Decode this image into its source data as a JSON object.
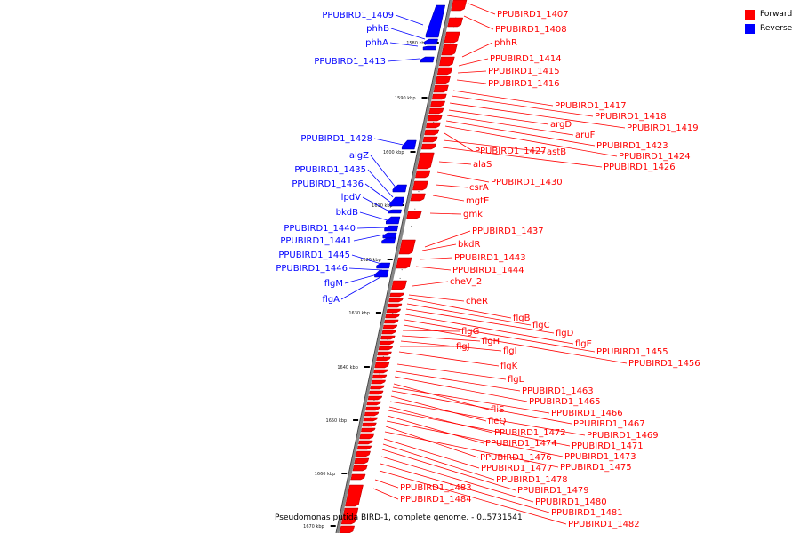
{
  "legend": {
    "forward_label": "Forward",
    "reverse_label": "Reverse",
    "forward_color": "#ff0000",
    "reverse_color": "#0000ff"
  },
  "title": "Pseudomonas putida BIRD-1, complete genome. - 0..5731541",
  "colors": {
    "forward": "#ff0000",
    "forward_edge": "#b00000",
    "reverse": "#0000ff",
    "reverse_edge": "#000099",
    "backbone": "#888888"
  },
  "scale_labels": [
    "1580 kbp",
    "1590 kbp",
    "1600 kbp",
    "1610 kbp",
    "1620 kbp",
    "1630 kbp",
    "1640 kbp",
    "1650 kbp",
    "1660 kbp",
    "1670 kbp"
  ],
  "forward_genes": [
    "PPUBIRD1_1407",
    "PPUBIRD1_1408",
    "phhR",
    "PPUBIRD1_1414",
    "PPUBIRD1_1415",
    "PPUBIRD1_1416",
    "PPUBIRD1_1417",
    "PPUBIRD1_1418",
    "PPUBIRD1_1419",
    "argD",
    "aruF",
    "PPUBIRD1_1423",
    "PPUBIRD1_1424",
    "PPUBIRD1_1427",
    "astB",
    "PPUBIRD1_1426",
    "alaS",
    "PPUBIRD1_1430",
    "csrA",
    "mgtE",
    "gmk",
    "PPUBIRD1_1437",
    "bkdR",
    "PPUBIRD1_1443",
    "PPUBIRD1_1444",
    "cheV_2",
    "cheR",
    "flgB",
    "flgC",
    "flgD",
    "flgE",
    "PPUBIRD1_1455",
    "PPUBIRD1_1456",
    "flgG",
    "flgH",
    "flgI",
    "flgJ",
    "flgK",
    "flgL",
    "PPUBIRD1_1463",
    "PPUBIRD1_1465",
    "fliS",
    "PPUBIRD1_1466",
    "PPUBIRD1_1467",
    "fleQ",
    "PPUBIRD1_1469",
    "PPUBIRD1_1472",
    "PPUBIRD1_1471",
    "PPUBIRD1_1474",
    "PPUBIRD1_1473",
    "PPUBIRD1_1476",
    "PPUBIRD1_1475",
    "PPUBIRD1_1477",
    "PPUBIRD1_1478",
    "PPUBIRD1_1479",
    "PPUBIRD1_1480",
    "PPUBIRD1_1481",
    "PPUBIRD1_1482",
    "PPUBIRD1_1483",
    "PPUBIRD1_1484"
  ],
  "reverse_genes": [
    "PPUBIRD1_1409",
    "phhB",
    "phhA",
    "PPUBIRD1_1413",
    "PPUBIRD1_1428",
    "algZ",
    "PPUBIRD1_1435",
    "PPUBIRD1_1436",
    "lpdV",
    "bkdB",
    "PPUBIRD1_1440",
    "PPUBIRD1_1441",
    "PPUBIRD1_1445",
    "PPUBIRD1_1446",
    "flgM",
    "flgA"
  ]
}
